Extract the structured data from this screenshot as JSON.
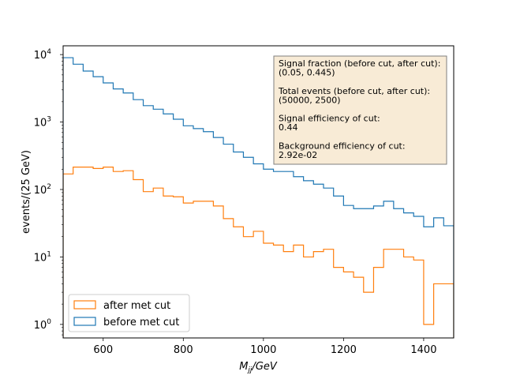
{
  "chart_data": {
    "type": "line",
    "subtype": "step-histogram",
    "title": "",
    "xlabel_main": "M",
    "xlabel_sub": "jj",
    "xlabel_unit": "/GeV",
    "ylabel": "events/(25 GeV)",
    "xlim": [
      500,
      1475
    ],
    "ylim": [
      0.63,
      13500
    ],
    "yscale": "log",
    "grid": false,
    "legend_position": "lower-left",
    "x_ticks": [
      600,
      800,
      1000,
      1200,
      1400
    ],
    "y_ticks": [
      {
        "value": 1,
        "base": "10",
        "exp": "0"
      },
      {
        "value": 10,
        "base": "10",
        "exp": "1"
      },
      {
        "value": 100,
        "base": "10",
        "exp": "2"
      },
      {
        "value": 1000,
        "base": "10",
        "exp": "3"
      },
      {
        "value": 10000,
        "base": "10",
        "exp": "4"
      }
    ],
    "bin_edges": [
      500,
      525,
      550,
      575,
      600,
      625,
      650,
      675,
      700,
      725,
      750,
      775,
      800,
      825,
      850,
      875,
      900,
      925,
      950,
      975,
      1000,
      1025,
      1050,
      1075,
      1100,
      1125,
      1150,
      1175,
      1200,
      1225,
      1250,
      1275,
      1300,
      1325,
      1350,
      1375,
      1400,
      1425,
      1450,
      1475
    ],
    "series": [
      {
        "name": "before met cut",
        "color": "#1f77b4",
        "values": [
          9000,
          7200,
          5700,
          4700,
          3800,
          3100,
          2700,
          2150,
          1750,
          1550,
          1320,
          1100,
          880,
          800,
          720,
          590,
          470,
          360,
          300,
          240,
          200,
          185,
          185,
          155,
          135,
          120,
          105,
          80,
          58,
          52,
          52,
          57,
          67,
          52,
          45,
          40,
          28,
          38,
          29
        ]
      },
      {
        "name": "after met cut",
        "color": "#ff7f0e",
        "values": [
          170,
          215,
          215,
          205,
          215,
          185,
          190,
          140,
          93,
          105,
          80,
          78,
          63,
          67,
          67,
          57,
          37,
          28,
          20,
          24,
          16,
          15,
          12,
          15,
          10,
          12,
          13,
          7,
          6,
          5,
          3,
          7,
          13,
          13,
          10,
          9,
          1,
          4,
          4
        ]
      }
    ],
    "legend": [
      {
        "label": "after met cut",
        "color": "#ff7f0e"
      },
      {
        "label": "before met cut",
        "color": "#1f77b4"
      }
    ],
    "annotation": {
      "background": "#f8ebd6",
      "lines": [
        "Signal fraction (before cut, after cut):",
        "(0.05, 0.445)",
        "",
        "Total events (before cut, after cut):",
        "(50000, 2500)",
        "",
        "Signal efficiency of cut:",
        "0.44",
        "",
        "Background efficiency of cut:",
        "2.92e-02"
      ]
    }
  }
}
